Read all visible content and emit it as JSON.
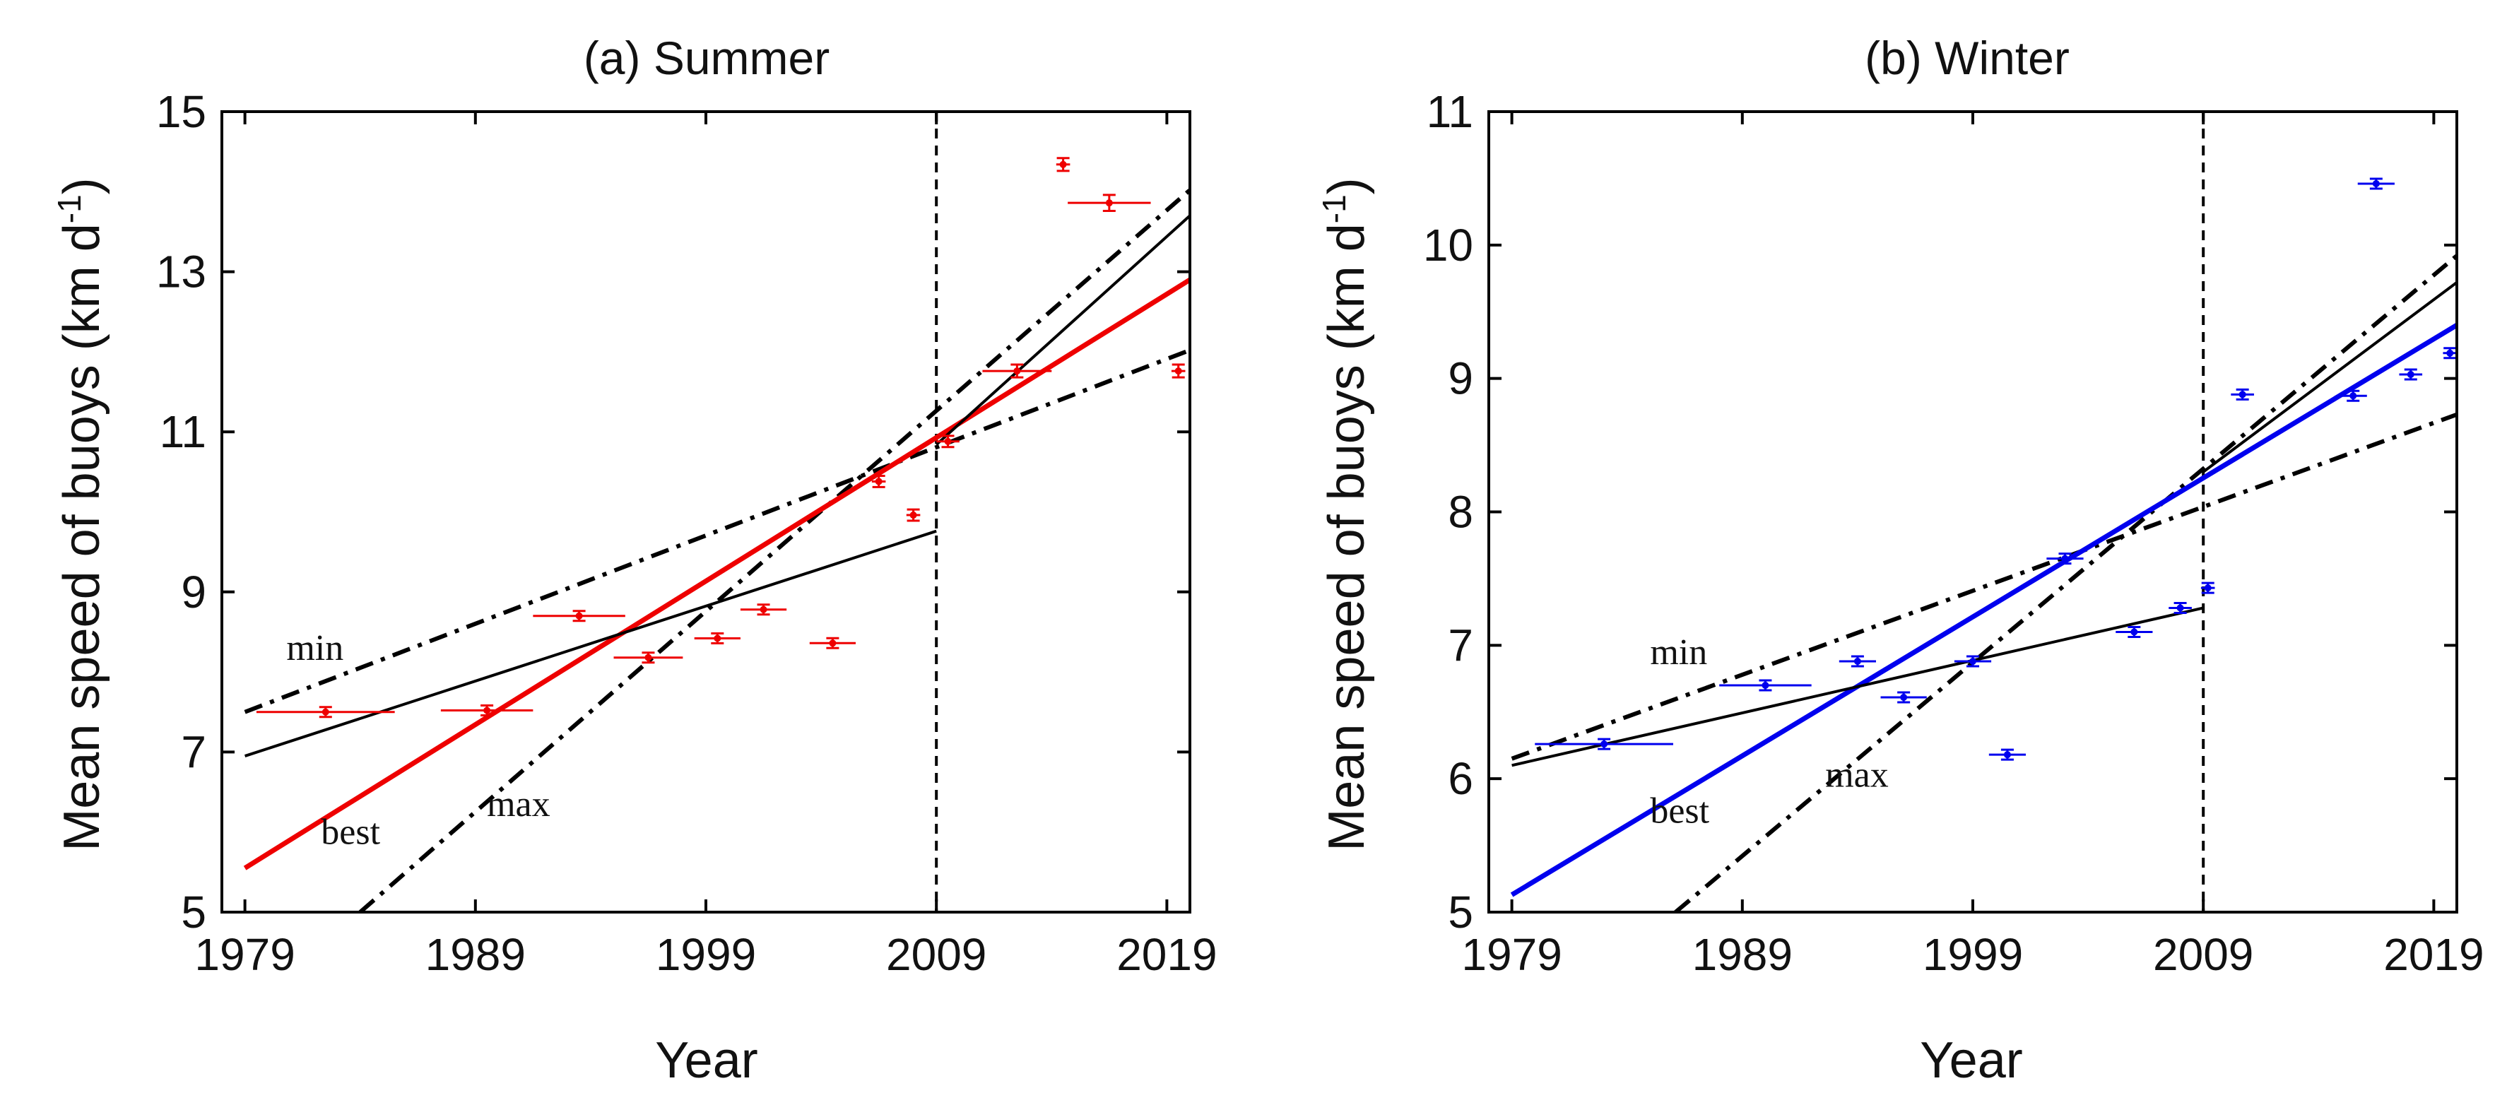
{
  "colors": {
    "summer": "#ee0000",
    "winter": "#0000ee",
    "trend": "#000000"
  },
  "chart_data": [
    {
      "type": "line",
      "title": "(a) Summer",
      "xlabel": "Year",
      "ylabel": "Mean speed of buoys (km d",
      "ylabel_sup": "-1",
      "ylabel_close": ")",
      "xlim": [
        1978,
        2020
      ],
      "ylim": [
        5,
        15
      ],
      "xticks": [
        1979,
        1989,
        1999,
        2009,
        2019
      ],
      "xtick_labels": [
        "1979",
        "1989",
        "1999",
        "2009",
        "2019"
      ],
      "yticks": [
        5,
        7,
        9,
        11,
        13,
        15
      ],
      "ytick_labels": [
        "5",
        "7",
        "9",
        "11",
        "13",
        "15"
      ],
      "vline_year": 2009,
      "points": [
        {
          "x": 1982.5,
          "y": 7.5,
          "xerr": 3,
          "yerr": 0.05
        },
        {
          "x": 1989.5,
          "y": 7.52,
          "xerr": 2,
          "yerr": 0.05
        },
        {
          "x": 1993.5,
          "y": 8.7,
          "xerr": 2,
          "yerr": 0.05
        },
        {
          "x": 1996.5,
          "y": 8.18,
          "xerr": 1.5,
          "yerr": 0.05
        },
        {
          "x": 1999.5,
          "y": 8.42,
          "xerr": 1,
          "yerr": 0.05
        },
        {
          "x": 2001.5,
          "y": 8.78,
          "xerr": 1,
          "yerr": 0.05
        },
        {
          "x": 2004.5,
          "y": 8.36,
          "xerr": 1,
          "yerr": 0.05
        },
        {
          "x": 2006.5,
          "y": 10.38,
          "xerr": 0.3,
          "yerr": 0.07
        },
        {
          "x": 2008.0,
          "y": 9.96,
          "xerr": 0.3,
          "yerr": 0.07
        },
        {
          "x": 2009.5,
          "y": 10.88,
          "xerr": 0.5,
          "yerr": 0.07
        },
        {
          "x": 2012.5,
          "y": 11.76,
          "xerr": 1.5,
          "yerr": 0.08
        },
        {
          "x": 2014.5,
          "y": 14.34,
          "xerr": 0.3,
          "yerr": 0.08
        },
        {
          "x": 2016.5,
          "y": 13.86,
          "xerr": 1.8,
          "yerr": 0.1
        },
        {
          "x": 2019.5,
          "y": 11.76,
          "xerr": 0.3,
          "yerr": 0.08
        }
      ],
      "lines": [
        {
          "name": "min",
          "style": "dashdot",
          "color": "trend",
          "x": [
            1979,
            2020
          ],
          "y": [
            7.5,
            12.02
          ]
        },
        {
          "name": "max",
          "style": "dashdot",
          "color": "trend",
          "x": [
            1984,
            2020
          ],
          "y": [
            5.0,
            14.02
          ]
        },
        {
          "name": "best",
          "style": "solid",
          "color": "summer",
          "x": [
            1979,
            2020
          ],
          "y": [
            5.55,
            12.9
          ]
        },
        {
          "name": "early trend",
          "style": "solid",
          "color": "trend",
          "x": [
            1979,
            2009
          ],
          "y": [
            6.95,
            9.76
          ]
        },
        {
          "name": "late trend",
          "style": "solid",
          "color": "trend",
          "x": [
            2009,
            2020
          ],
          "y": [
            10.84,
            13.7
          ]
        }
      ],
      "annotations": [
        {
          "text": "min",
          "x": 1980.8,
          "y": 8.15
        },
        {
          "text": "max",
          "x": 1989.5,
          "y": 6.2
        },
        {
          "text": "best",
          "x": 1982.3,
          "y": 5.85
        }
      ]
    },
    {
      "type": "line",
      "title": "(b) Winter",
      "xlabel": "Year",
      "ylabel": "Mean speed of buoys (km d",
      "ylabel_sup": "-1",
      "ylabel_close": ")",
      "xlim": [
        1978,
        2020
      ],
      "ylim": [
        5,
        11
      ],
      "xticks": [
        1979,
        1989,
        1999,
        2009,
        2019
      ],
      "xtick_labels": [
        "1979",
        "1989",
        "1999",
        "2009",
        "2019"
      ],
      "yticks": [
        5,
        6,
        7,
        8,
        9,
        10,
        11
      ],
      "ytick_labels": [
        "5",
        "6",
        "7",
        "8",
        "9",
        "10",
        "11"
      ],
      "vline_year": 2009,
      "points": [
        {
          "x": 1983.0,
          "y": 6.26,
          "xerr": 3,
          "yerr": 0.03
        },
        {
          "x": 1990.0,
          "y": 6.7,
          "xerr": 2,
          "yerr": 0.03
        },
        {
          "x": 1994.0,
          "y": 6.88,
          "xerr": 0.8,
          "yerr": 0.03
        },
        {
          "x": 1996.0,
          "y": 6.61,
          "xerr": 1,
          "yerr": 0.03
        },
        {
          "x": 1999.0,
          "y": 6.88,
          "xerr": 0.8,
          "yerr": 0.03
        },
        {
          "x": 2000.5,
          "y": 6.18,
          "xerr": 0.8,
          "yerr": 0.03
        },
        {
          "x": 2003.0,
          "y": 7.65,
          "xerr": 0.8,
          "yerr": 0.03
        },
        {
          "x": 2006.0,
          "y": 7.1,
          "xerr": 0.8,
          "yerr": 0.03
        },
        {
          "x": 2008.0,
          "y": 7.28,
          "xerr": 0.5,
          "yerr": 0.03
        },
        {
          "x": 2009.2,
          "y": 7.43,
          "xerr": 0.3,
          "yerr": 0.03
        },
        {
          "x": 2010.7,
          "y": 8.88,
          "xerr": 0.5,
          "yerr": 0.03
        },
        {
          "x": 2015.5,
          "y": 8.87,
          "xerr": 0.6,
          "yerr": 0.03
        },
        {
          "x": 2016.5,
          "y": 10.46,
          "xerr": 0.8,
          "yerr": 0.03
        },
        {
          "x": 2018.0,
          "y": 9.03,
          "xerr": 0.5,
          "yerr": 0.03
        },
        {
          "x": 2019.7,
          "y": 9.19,
          "xerr": 0.3,
          "yerr": 0.03
        }
      ],
      "lines": [
        {
          "name": "min",
          "style": "dashdot",
          "color": "trend",
          "x": [
            1979,
            2020
          ],
          "y": [
            6.15,
            8.73
          ]
        },
        {
          "name": "max",
          "style": "dashdot",
          "color": "trend",
          "x": [
            1986.1,
            2020
          ],
          "y": [
            5.0,
            9.92
          ]
        },
        {
          "name": "best",
          "style": "solid",
          "color": "winter",
          "x": [
            1979,
            2020
          ],
          "y": [
            5.13,
            9.4
          ]
        },
        {
          "name": "early trend",
          "style": "solid",
          "color": "trend",
          "x": [
            1979,
            2009
          ],
          "y": [
            6.1,
            7.28
          ]
        },
        {
          "name": "late trend",
          "style": "solid",
          "color": "trend",
          "x": [
            2009,
            2020
          ],
          "y": [
            8.3,
            9.72
          ]
        }
      ],
      "annotations": [
        {
          "text": "min",
          "x": 1985.0,
          "y": 6.86
        },
        {
          "text": "max",
          "x": 1992.6,
          "y": 5.94
        },
        {
          "text": "best",
          "x": 1985.0,
          "y": 5.67
        }
      ]
    }
  ]
}
